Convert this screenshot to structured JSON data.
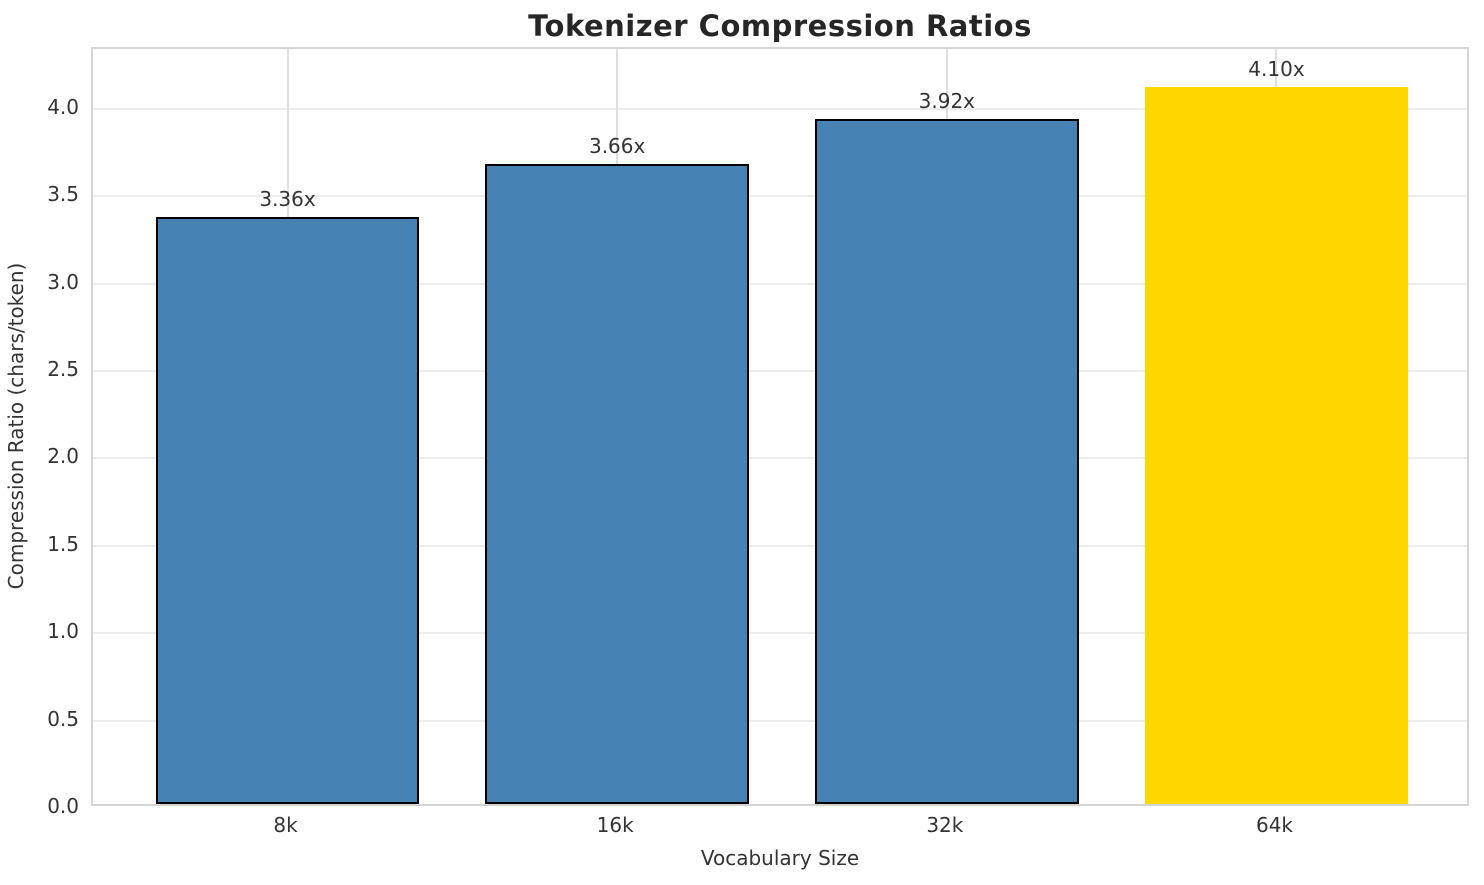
{
  "chart_data": {
    "type": "bar",
    "title": "Tokenizer Compression Ratios",
    "xlabel": "Vocabulary Size",
    "ylabel": "Compression Ratio (chars/token)",
    "categories": [
      "8k",
      "16k",
      "32k",
      "64k"
    ],
    "values": [
      3.36,
      3.66,
      3.92,
      4.1
    ],
    "bar_display_labels": [
      "3.36x",
      "3.66x",
      "3.92x",
      "4.10x"
    ],
    "bar_colors": [
      "#4682B4",
      "#4682B4",
      "#4682B4",
      "#FFD700"
    ],
    "bar_edge_colors": [
      "#000000",
      "#000000",
      "#000000",
      "none"
    ],
    "highlighted_category": "64k",
    "yticks": [
      "0.0",
      "0.5",
      "1.0",
      "1.5",
      "2.0",
      "2.5",
      "3.0",
      "3.5",
      "4.0"
    ],
    "ylim": [
      0,
      4.34
    ],
    "grid": "both",
    "legend": "none"
  }
}
